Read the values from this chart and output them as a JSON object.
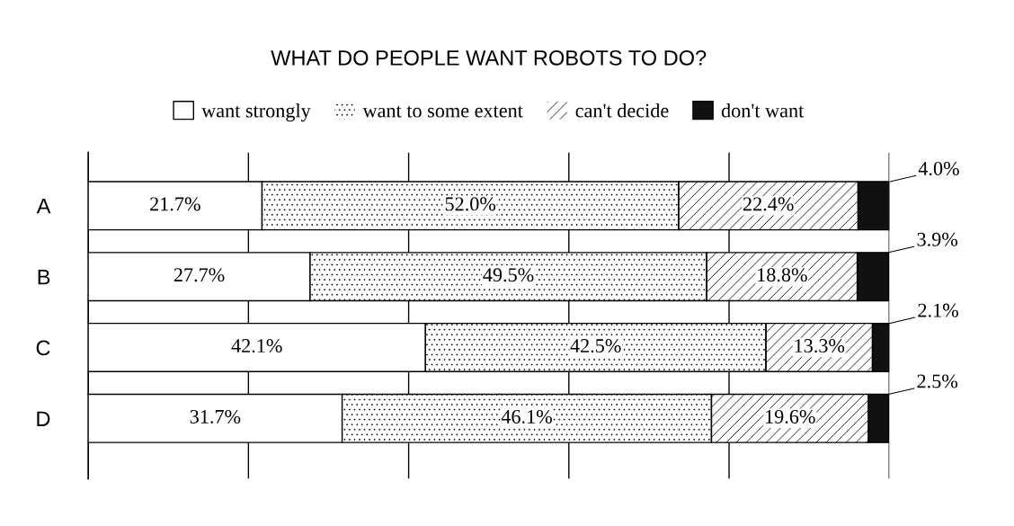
{
  "chart_data": {
    "type": "bar",
    "orientation": "horizontal",
    "stacked": true,
    "title": "WHAT DO PEOPLE WANT ROBOTS TO DO?",
    "categories": [
      "A",
      "B",
      "C",
      "D"
    ],
    "series": [
      {
        "name": "want strongly",
        "color": "#ffffff",
        "values": [
          21.7,
          27.7,
          42.1,
          31.7
        ],
        "value_labels": [
          "21.7%",
          "27.7%",
          "42.1%",
          "31.7%"
        ]
      },
      {
        "name": "want to some extent",
        "color": "#ffffff",
        "values": [
          52.0,
          49.5,
          42.5,
          46.1
        ],
        "value_labels": [
          "52.0%",
          "49.5%",
          "42.5%",
          "46.1%"
        ]
      },
      {
        "name": "can't decide",
        "color": "#ffffff",
        "values": [
          22.4,
          18.8,
          13.3,
          19.6
        ],
        "value_labels": [
          "22.4%",
          "18.8%",
          "13.3%",
          "19.6%"
        ]
      },
      {
        "name": "don't want",
        "color": "#111111",
        "values": [
          4.0,
          3.9,
          2.1,
          2.5
        ],
        "value_labels": [
          "4.0%",
          "3.9%",
          "2.1%",
          "2.5%"
        ]
      }
    ],
    "xlim": [
      0,
      100
    ],
    "xticks": [
      {
        "value": 0,
        "label": null
      },
      {
        "value": 20,
        "label": null
      },
      {
        "value": 40,
        "label": null
      },
      {
        "value": 60,
        "label": null
      },
      {
        "value": 80,
        "label": null
      },
      {
        "value": 100,
        "label": null
      }
    ],
    "grid": "x",
    "legend": "top",
    "tick_labels": "y"
  }
}
